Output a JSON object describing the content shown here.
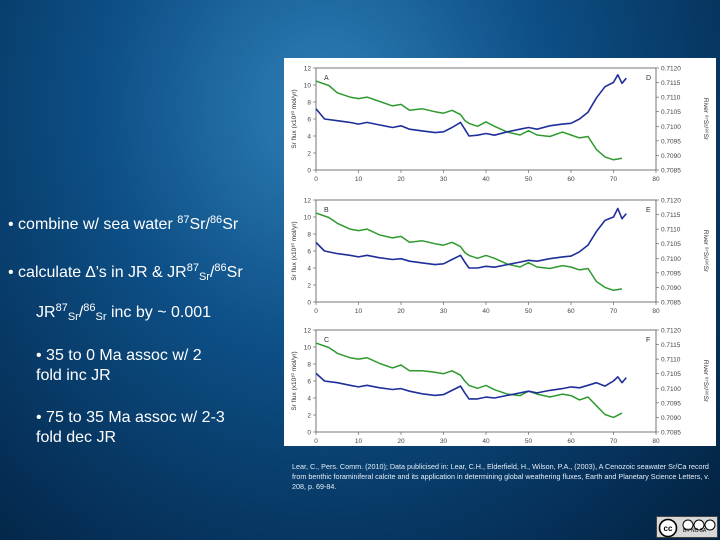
{
  "bullets": {
    "b1": {
      "pre": "• combine w/ sea water ",
      "sup1": "87",
      "mid": "Sr/",
      "sup2": "86",
      "post": "Sr"
    },
    "b2": {
      "pre": "• calculate ",
      "delta": "∆",
      "mid": "’s in JR & JR",
      "sup1": "87",
      "sub1": "Sr",
      "slash": "/",
      "sup2": "86",
      "post": "Sr"
    },
    "b3": {
      "pre": "JR",
      "sup1": "87",
      "sub1": "Sr",
      "slash": "/",
      "sup2": "86",
      "sub2": "Sr",
      "post": " inc by ~ 0.001"
    },
    "b4": {
      "line1": "• 35 to 0 Ma assoc w/ 2",
      "line2": "fold inc JR"
    },
    "b5": {
      "line1": "• 75 to 35 Ma assoc w/ 2-3",
      "line2": "fold dec JR"
    }
  },
  "citation": "Lear, C., Pers. Comm. (2010); Data publicised in: Lear, C.H., Elderfield, H., Wilson, P.A., (2003), A Cenozoic seawater Sr/Ca record from benthic foraminiferal calcite and its application in determining global weathering fluxes, Earth and Planetary Science Letters, v. 208, p. 69-84.",
  "license_badge": {
    "text": "BY NC SA",
    "cc": "cc"
  },
  "colors": {
    "flux": "#1f2f9a",
    "ratio": "#2e9a2e",
    "axis": "#555555"
  },
  "chart_data": {
    "type": "line",
    "xlabel": "Age (Ma)",
    "xlim": [
      0,
      80
    ],
    "xticks": [
      "0",
      "10",
      "20",
      "30",
      "40",
      "50",
      "60",
      "70",
      "80"
    ],
    "ylabel_left": "Sr flux (x10¹⁰ mol/yr)",
    "ylabel_right": "River ⁸⁷Sr/⁸⁶Sr",
    "ylim_left": [
      0,
      12
    ],
    "yticks_left": [
      "0",
      "2",
      "4",
      "6",
      "8",
      "10",
      "12"
    ],
    "ylim_right": [
      0.7085,
      0.712
    ],
    "yticks_right": [
      "0.7085",
      "0.7090",
      "0.7095",
      "0.7100",
      "0.7105",
      "0.7110",
      "0.7115",
      "0.7120"
    ],
    "panels": [
      {
        "left_label": "A",
        "right_label": "D",
        "flux": {
          "x": [
            0,
            2,
            5,
            8,
            10,
            12,
            15,
            18,
            20,
            22,
            25,
            28,
            30,
            32,
            34,
            35,
            36,
            38,
            40,
            42,
            45,
            48,
            50,
            52,
            55,
            58,
            60,
            62,
            64,
            66,
            68,
            70,
            71,
            72,
            73
          ],
          "y": [
            7.2,
            6.0,
            5.8,
            5.6,
            5.4,
            5.6,
            5.3,
            5.0,
            5.2,
            4.8,
            4.6,
            4.4,
            4.5,
            5.0,
            5.6,
            4.8,
            4.0,
            4.1,
            4.3,
            4.1,
            4.5,
            4.8,
            5.0,
            4.8,
            5.2,
            5.4,
            5.5,
            6.0,
            6.8,
            8.5,
            9.8,
            10.3,
            11.2,
            10.2,
            10.8
          ]
        },
        "ratio": {
          "x": [
            0,
            3,
            5,
            8,
            10,
            12,
            15,
            18,
            20,
            22,
            25,
            28,
            30,
            32,
            34,
            35,
            36,
            38,
            40,
            42,
            45,
            48,
            50,
            52,
            55,
            58,
            60,
            62,
            64,
            66,
            68,
            70,
            72
          ],
          "y": [
            0.71155,
            0.7114,
            0.71115,
            0.711,
            0.71095,
            0.711,
            0.71085,
            0.7107,
            0.71075,
            0.71055,
            0.7106,
            0.7105,
            0.71045,
            0.71055,
            0.7104,
            0.7102,
            0.7101,
            0.71,
            0.71015,
            0.71,
            0.7098,
            0.7097,
            0.70985,
            0.7097,
            0.70965,
            0.7098,
            0.7097,
            0.7096,
            0.70965,
            0.7092,
            0.70895,
            0.70885,
            0.7089
          ]
        }
      },
      {
        "left_label": "B",
        "right_label": "E",
        "flux": {
          "x": [
            0,
            2,
            5,
            8,
            10,
            12,
            15,
            18,
            20,
            22,
            25,
            28,
            30,
            32,
            34,
            35,
            36,
            38,
            40,
            42,
            45,
            48,
            50,
            52,
            55,
            58,
            60,
            62,
            64,
            66,
            68,
            70,
            71,
            72,
            73
          ],
          "y": [
            7.0,
            6.0,
            5.7,
            5.5,
            5.3,
            5.5,
            5.2,
            5.0,
            5.1,
            4.8,
            4.6,
            4.4,
            4.5,
            5.0,
            5.5,
            4.7,
            4.0,
            4.0,
            4.2,
            4.1,
            4.4,
            4.7,
            4.9,
            4.8,
            5.1,
            5.3,
            5.4,
            5.9,
            6.7,
            8.3,
            9.6,
            10.0,
            11.0,
            9.8,
            10.4
          ]
        },
        "ratio": {
          "x": [
            0,
            3,
            5,
            8,
            10,
            12,
            15,
            18,
            20,
            22,
            25,
            28,
            30,
            32,
            34,
            35,
            36,
            38,
            40,
            42,
            45,
            48,
            50,
            52,
            55,
            58,
            60,
            62,
            64,
            66,
            68,
            70,
            72
          ],
          "y": [
            0.71155,
            0.7114,
            0.7112,
            0.711,
            0.71095,
            0.711,
            0.7108,
            0.7107,
            0.71075,
            0.71055,
            0.7106,
            0.7105,
            0.71045,
            0.71055,
            0.7104,
            0.7102,
            0.7101,
            0.71,
            0.7101,
            0.71,
            0.7098,
            0.7097,
            0.70985,
            0.7097,
            0.70965,
            0.70975,
            0.7097,
            0.7096,
            0.70965,
            0.7092,
            0.709,
            0.7089,
            0.70895
          ]
        }
      },
      {
        "left_label": "C",
        "right_label": "F",
        "flux": {
          "x": [
            0,
            2,
            5,
            8,
            10,
            12,
            15,
            18,
            20,
            22,
            25,
            28,
            30,
            32,
            34,
            35,
            36,
            38,
            40,
            42,
            45,
            48,
            50,
            52,
            55,
            58,
            60,
            62,
            64,
            66,
            68,
            70,
            71,
            72,
            73
          ],
          "y": [
            6.9,
            6.0,
            5.8,
            5.5,
            5.3,
            5.5,
            5.2,
            5.0,
            5.1,
            4.8,
            4.5,
            4.3,
            4.4,
            4.9,
            5.4,
            4.6,
            3.9,
            3.9,
            4.1,
            4.0,
            4.3,
            4.6,
            4.8,
            4.6,
            4.9,
            5.1,
            5.3,
            5.2,
            5.5,
            5.8,
            5.4,
            6.0,
            6.5,
            5.8,
            6.4
          ]
        },
        "ratio": {
          "x": [
            0,
            3,
            5,
            8,
            10,
            12,
            15,
            18,
            20,
            22,
            25,
            28,
            30,
            32,
            34,
            35,
            36,
            38,
            40,
            42,
            45,
            48,
            50,
            52,
            55,
            58,
            60,
            62,
            64,
            66,
            68,
            70,
            72
          ],
          "y": [
            0.71155,
            0.7114,
            0.7112,
            0.71105,
            0.711,
            0.71105,
            0.71085,
            0.7107,
            0.7108,
            0.7106,
            0.7106,
            0.71055,
            0.7105,
            0.7106,
            0.71045,
            0.71025,
            0.7101,
            0.71,
            0.7101,
            0.70995,
            0.7098,
            0.70975,
            0.7099,
            0.7098,
            0.7097,
            0.7098,
            0.70975,
            0.7096,
            0.7097,
            0.7094,
            0.7091,
            0.709,
            0.70915
          ]
        }
      }
    ]
  }
}
